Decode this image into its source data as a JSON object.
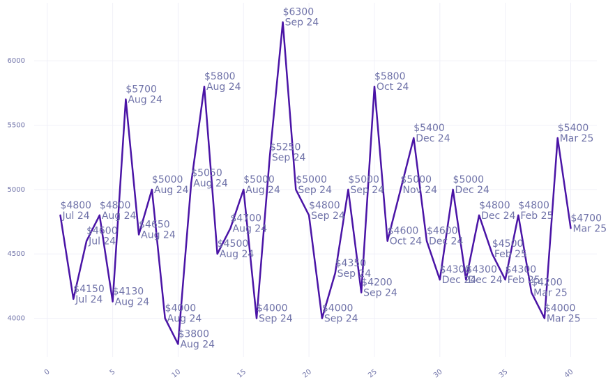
{
  "chart_data": {
    "type": "line",
    "title": "",
    "xlabel": "",
    "ylabel": "",
    "xlim": [
      0,
      40
    ],
    "ylim": [
      3800,
      6300
    ],
    "x_ticks": [
      0,
      5,
      10,
      15,
      20,
      25,
      30,
      35,
      40
    ],
    "y_ticks": [
      4000,
      4500,
      5000,
      5500,
      6000
    ],
    "grid": true,
    "line_color": "#4a14a6",
    "label_color": "#6f72a8",
    "series": [
      {
        "points": [
          {
            "x": 1,
            "y": 4800,
            "price": "$4800",
            "date": "Jul 24"
          },
          {
            "x": 2,
            "y": 4150,
            "price": "$4150",
            "date": "Jul 24"
          },
          {
            "x": 3,
            "y": 4600,
            "price": "$4600",
            "date": "Jul 24"
          },
          {
            "x": 4,
            "y": 4800,
            "price": "$4800",
            "date": "Aug 24"
          },
          {
            "x": 5,
            "y": 4130,
            "price": "$4130",
            "date": "Aug 24"
          },
          {
            "x": 6,
            "y": 5700,
            "price": "$5700",
            "date": "Aug 24"
          },
          {
            "x": 7,
            "y": 4650,
            "price": "$4650",
            "date": "Aug 24"
          },
          {
            "x": 8,
            "y": 5000,
            "price": "$5000",
            "date": "Aug 24"
          },
          {
            "x": 9,
            "y": 4000,
            "price": "$4000",
            "date": "Aug 24"
          },
          {
            "x": 10,
            "y": 3800,
            "price": "$3800",
            "date": "Aug 24"
          },
          {
            "x": 11,
            "y": 5050,
            "price": "$5050",
            "date": "Aug 24"
          },
          {
            "x": 12,
            "y": 5800,
            "price": "$5800",
            "date": "Aug 24"
          },
          {
            "x": 13,
            "y": 4500,
            "price": "$4500",
            "date": "Aug 24"
          },
          {
            "x": 14,
            "y": 4700,
            "price": "$4700",
            "date": "Aug 24"
          },
          {
            "x": 15,
            "y": 5000,
            "price": "$5000",
            "date": "Aug 24"
          },
          {
            "x": 16,
            "y": 4000,
            "price": "$4000",
            "date": "Sep 24"
          },
          {
            "x": 17,
            "y": 5250,
            "price": "$5250",
            "date": "Sep 24"
          },
          {
            "x": 18,
            "y": 6300,
            "price": "$6300",
            "date": "Sep 24"
          },
          {
            "x": 19,
            "y": 5000,
            "price": "$5000",
            "date": "Sep 24"
          },
          {
            "x": 20,
            "y": 4800,
            "price": "$4800",
            "date": "Sep 24"
          },
          {
            "x": 21,
            "y": 4000,
            "price": "$4000",
            "date": "Sep 24"
          },
          {
            "x": 22,
            "y": 4350,
            "price": "$4350",
            "date": "Sep 24"
          },
          {
            "x": 23,
            "y": 5000,
            "price": "$5000",
            "date": "Sep 24"
          },
          {
            "x": 24,
            "y": 4200,
            "price": "$4200",
            "date": "Sep 24"
          },
          {
            "x": 25,
            "y": 5800,
            "price": "$5800",
            "date": "Oct 24"
          },
          {
            "x": 26,
            "y": 4600,
            "price": "$4600",
            "date": "Oct 24"
          },
          {
            "x": 27,
            "y": 5000,
            "price": "$5000",
            "date": "Nov 24"
          },
          {
            "x": 28,
            "y": 5400,
            "price": "$5400",
            "date": "Dec 24"
          },
          {
            "x": 29,
            "y": 4600,
            "price": "$4600",
            "date": "Dec 24"
          },
          {
            "x": 30,
            "y": 4300,
            "price": "$4300",
            "date": "Dec 24"
          },
          {
            "x": 31,
            "y": 5000,
            "price": "$5000",
            "date": "Dec 24"
          },
          {
            "x": 32,
            "y": 4300,
            "price": "$4300",
            "date": "Dec 24"
          },
          {
            "x": 33,
            "y": 4800,
            "price": "$4800",
            "date": "Dec 24"
          },
          {
            "x": 34,
            "y": 4500,
            "price": "$4500",
            "date": "Feb 25"
          },
          {
            "x": 35,
            "y": 4300,
            "price": "$4300",
            "date": "Feb 25"
          },
          {
            "x": 36,
            "y": 4800,
            "price": "$4800",
            "date": "Feb 25"
          },
          {
            "x": 37,
            "y": 4200,
            "price": "$4200",
            "date": "Mar 25"
          },
          {
            "x": 38,
            "y": 4000,
            "price": "$4000",
            "date": "Mar 25"
          },
          {
            "x": 39,
            "y": 5400,
            "price": "$5400",
            "date": "Mar 25"
          },
          {
            "x": 40,
            "y": 4700,
            "price": "$4700",
            "date": "Mar 25"
          }
        ]
      }
    ]
  }
}
